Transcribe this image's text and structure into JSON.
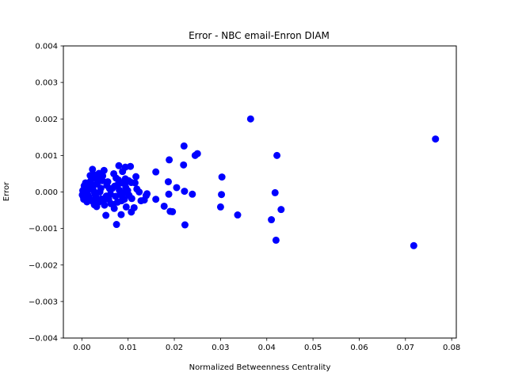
{
  "chart_data": {
    "type": "scatter",
    "title": "Error - NBC email-Enron DIAM",
    "xlabel": "Normalized Betweenness Centrality",
    "ylabel": "Error",
    "xlim": [
      -0.004,
      0.081
    ],
    "ylim": [
      -0.004,
      0.004
    ],
    "xticks": [
      0.0,
      0.01,
      0.02,
      0.03,
      0.04,
      0.05,
      0.06,
      0.07,
      0.08
    ],
    "xtick_labels": [
      "0.00",
      "0.01",
      "0.02",
      "0.03",
      "0.04",
      "0.05",
      "0.06",
      "0.07",
      "0.08"
    ],
    "yticks": [
      0.004,
      0.003,
      0.002,
      0.001,
      0.0,
      -0.001,
      -0.002,
      -0.003,
      -0.004
    ],
    "ytick_labels": [
      "0.004",
      "0.003",
      "0.002",
      "0.001",
      "0.000",
      "−0.001",
      "−0.002",
      "−0.003",
      "−0.004"
    ],
    "grid": false,
    "marker_color": "#0000ff",
    "series": [
      {
        "points": [
          [
            0.0765,
            0.00145
          ],
          [
            0.0718,
            -0.00147
          ],
          [
            0.0365,
            0.002
          ],
          [
            0.0422,
            0.001
          ],
          [
            0.0418,
            -2e-05
          ],
          [
            0.0431,
            -0.00048
          ],
          [
            0.041,
            -0.00076
          ],
          [
            0.042,
            -0.00132
          ],
          [
            0.0337,
            -0.00063
          ],
          [
            0.0303,
            0.00041
          ],
          [
            0.0302,
            -7e-05
          ],
          [
            0.03,
            -0.00041
          ],
          [
            0.025,
            0.00105
          ],
          [
            0.0245,
            0.001
          ],
          [
            0.0221,
            0.00126
          ],
          [
            0.022,
            0.00074
          ],
          [
            0.0222,
            2e-05
          ],
          [
            0.0239,
            -6e-05
          ],
          [
            0.0223,
            -0.0009
          ],
          [
            0.0189,
            0.00088
          ],
          [
            0.0187,
            0.00028
          ],
          [
            0.0205,
            0.00012
          ],
          [
            0.0188,
            -6e-05
          ],
          [
            0.0178,
            -0.00039
          ],
          [
            0.0191,
            -0.00053
          ],
          [
            0.0196,
            -0.00054
          ],
          [
            0.016,
            0.00055
          ],
          [
            0.0139,
            -0.0001
          ],
          [
            0.0141,
            -5e-05
          ],
          [
            0.016,
            -0.0002
          ],
          [
            0.0135,
            -0.00022
          ],
          [
            0.0128,
            -0.00024
          ],
          [
            0.0124,
            0.0
          ],
          [
            0.0119,
            8e-05
          ],
          [
            0.0117,
            0.00042
          ],
          [
            0.0115,
            0.00025
          ],
          [
            0.0105,
            0.0007
          ],
          [
            0.0107,
            0.00026
          ],
          [
            0.0108,
            -0.00018
          ],
          [
            0.0113,
            -0.00043
          ],
          [
            0.0107,
            -0.00055
          ],
          [
            0.0094,
            0.00068
          ],
          [
            0.008,
            0.00072
          ],
          [
            0.0088,
            0.00056
          ],
          [
            0.0094,
            0.00036
          ],
          [
            0.0087,
            0.00025
          ],
          [
            0.0095,
            0.00012
          ],
          [
            0.0092,
            -0.0002
          ],
          [
            0.0096,
            -0.00041
          ],
          [
            0.0085,
            -0.00062
          ],
          [
            0.0075,
            -0.00089
          ],
          [
            0.0052,
            -0.00064
          ],
          [
            0.0069,
            0.0005
          ],
          [
            0.0074,
            0.00038
          ],
          [
            0.0078,
            0.0002
          ],
          [
            0.0081,
            5e-05
          ],
          [
            0.0073,
            -0.00012
          ],
          [
            0.0077,
            -0.00028
          ],
          [
            0.007,
            -0.00045
          ],
          [
            0.0063,
            -0.00032
          ],
          [
            0.0048,
            0.00059
          ],
          [
            0.0045,
            0.00044
          ],
          [
            0.0037,
            0.00051
          ],
          [
            0.0023,
            0.00062
          ],
          [
            0.0028,
            0.00038
          ],
          [
            0.0033,
            0.00022
          ],
          [
            0.0019,
            0.0003
          ],
          [
            0.0015,
            0.00014
          ],
          [
            0.0012,
            4e-05
          ],
          [
            0.0009,
            -5e-05
          ],
          [
            0.0016,
            -0.00016
          ],
          [
            0.0021,
            -0.00024
          ],
          [
            0.0027,
            -0.00035
          ],
          [
            0.0035,
            -0.00029
          ],
          [
            0.0042,
            -0.00019
          ],
          [
            0.0053,
            -0.00011
          ],
          [
            0.006,
            9e-05
          ],
          [
            0.0056,
            0.00028
          ],
          [
            0.0041,
            0.0001
          ],
          [
            0.0029,
            -7e-05
          ],
          [
            0.0005,
            0.00017
          ],
          [
            0.0002,
            4e-05
          ],
          [
            0.0001,
            -8e-05
          ],
          [
            0.0004,
            -0.0002
          ],
          [
            0.0008,
            0.00025
          ],
          [
            0.0011,
            -0.00027
          ],
          [
            0.0018,
            0.00045
          ],
          [
            0.0024,
            0.00014
          ],
          [
            0.0031,
            -0.00015
          ],
          [
            0.0044,
            0.00031
          ],
          [
            0.0049,
            -0.00036
          ],
          [
            0.0058,
            -0.0002
          ],
          [
            0.0066,
            0.0001
          ],
          [
            0.0071,
            0.00016
          ],
          [
            0.0083,
            -7e-05
          ],
          [
            0.009,
            -3e-05
          ],
          [
            0.0099,
            4e-05
          ],
          [
            0.0102,
            -9e-05
          ],
          [
            0.0062,
            -6e-05
          ],
          [
            0.0039,
            0.0
          ],
          [
            0.0026,
            2e-05
          ],
          [
            0.0014,
            -0.0001
          ],
          [
            0.0007,
            9e-05
          ],
          [
            0.0003,
            -0.00013
          ],
          [
            0.0021,
            0.00021
          ],
          [
            0.0034,
            0.00035
          ],
          [
            0.0046,
            -0.00026
          ],
          [
            0.0054,
            0.00018
          ],
          [
            0.0067,
            -0.00034
          ],
          [
            0.0079,
            0.00033
          ],
          [
            0.0086,
            -0.00024
          ],
          [
            0.0093,
            0.00022
          ],
          [
            0.0101,
            0.00031
          ],
          [
            0.0032,
            -0.0004
          ],
          [
            0.0025,
            0.00048
          ]
        ]
      }
    ]
  }
}
